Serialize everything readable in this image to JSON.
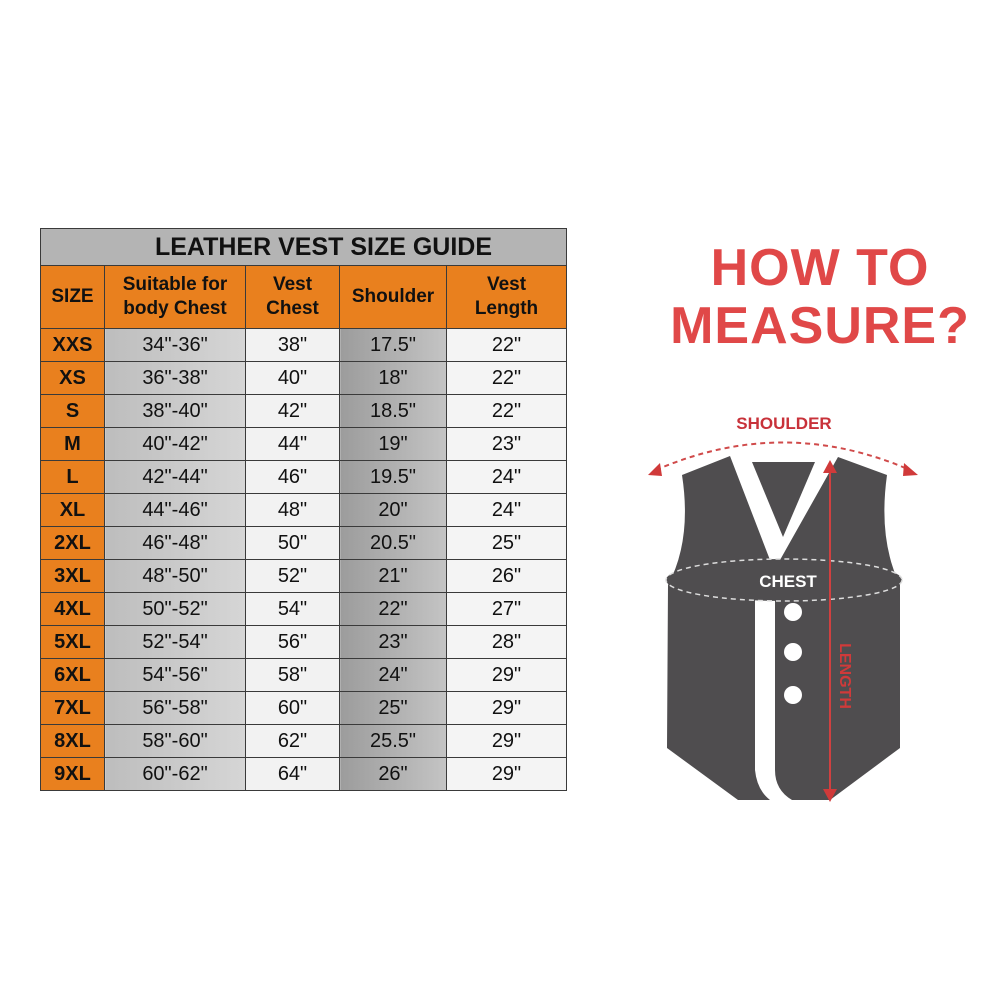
{
  "title": "LEATHER VEST SIZE GUIDE",
  "headers": [
    "SIZE",
    "Suitable for body Chest",
    "Vest Chest",
    "Shoulder",
    "Vest Length"
  ],
  "header_lines": [
    [
      "SIZE"
    ],
    [
      "Suitable for",
      "body Chest"
    ],
    [
      "Vest",
      "Chest"
    ],
    [
      "Shoulder"
    ],
    [
      "Vest",
      "Length"
    ]
  ],
  "rows": [
    [
      "XXS",
      "34\"-36\"",
      "38\"",
      "17.5\"",
      "22\""
    ],
    [
      "XS",
      "36\"-38\"",
      "40\"",
      "18\"",
      "22\""
    ],
    [
      "S",
      "38\"-40\"",
      "42\"",
      "18.5\"",
      "22\""
    ],
    [
      "M",
      "40\"-42\"",
      "44\"",
      "19\"",
      "23\""
    ],
    [
      "L",
      "42\"-44\"",
      "46\"",
      "19.5\"",
      "24\""
    ],
    [
      "XL",
      "44\"-46\"",
      "48\"",
      "20\"",
      "24\""
    ],
    [
      "2XL",
      "46\"-48\"",
      "50\"",
      "20.5\"",
      "25\""
    ],
    [
      "3XL",
      "48\"-50\"",
      "52\"",
      "21\"",
      "26\""
    ],
    [
      "4XL",
      "50\"-52\"",
      "54\"",
      "22\"",
      "27\""
    ],
    [
      "5XL",
      "52\"-54\"",
      "56\"",
      "23\"",
      "28\""
    ],
    [
      "6XL",
      "54\"-56\"",
      "58\"",
      "24\"",
      "29\""
    ],
    [
      "7XL",
      "56\"-58\"",
      "60\"",
      "25\"",
      "29\""
    ],
    [
      "8XL",
      "58\"-60\"",
      "62\"",
      "25.5\"",
      "29\""
    ],
    [
      "9XL",
      "60\"-62\"",
      "64\"",
      "26\"",
      "29\""
    ]
  ],
  "measure": {
    "heading_line1": "HOW TO",
    "heading_line2": "MEASURE?",
    "shoulder_label": "SHOULDER",
    "chest_label": "CHEST",
    "length_label": "LENGTH"
  },
  "colors": {
    "orange": "#e9801e",
    "red": "#e04848",
    "vest": "#4f4d4f"
  }
}
